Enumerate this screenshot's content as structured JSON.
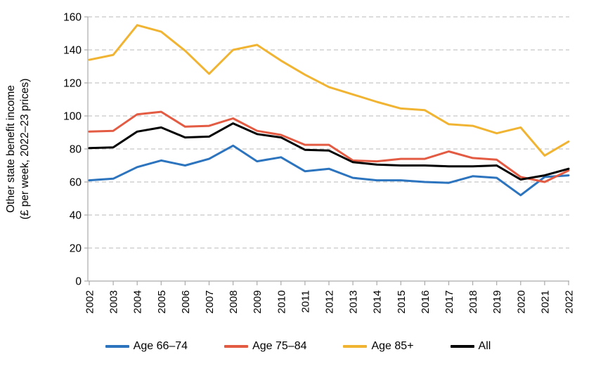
{
  "chart_data": {
    "type": "line",
    "title": "",
    "ylabel_line1": "Other state benefit income",
    "ylabel_line2": "(£ per week, 2022–23 prices)",
    "x": [
      2002,
      2003,
      2004,
      2005,
      2006,
      2007,
      2008,
      2009,
      2010,
      2011,
      2012,
      2013,
      2014,
      2015,
      2016,
      2017,
      2018,
      2019,
      2020,
      2021,
      2022
    ],
    "ylim": [
      0,
      160
    ],
    "ytick_step": 20,
    "grid": "horizontal-dashed",
    "legend_position": "bottom",
    "series": [
      {
        "name": "Age 66–74",
        "color": "#2d74bf",
        "values": [
          61,
          62,
          69,
          73,
          70,
          74,
          82,
          72.5,
          75,
          66.5,
          68,
          62.5,
          61,
          61,
          60,
          59.5,
          63.5,
          62.5,
          52,
          63,
          64
        ]
      },
      {
        "name": "Age 75–84",
        "color": "#e35b43",
        "values": [
          90.5,
          91,
          101,
          102.5,
          93.5,
          94,
          98.5,
          91,
          88.5,
          82.5,
          82.5,
          73,
          72.5,
          74,
          74,
          78.5,
          74.5,
          73.5,
          63,
          60,
          67
        ]
      },
      {
        "name": "Age 85+",
        "color": "#f1b432",
        "values": [
          134,
          137,
          155,
          151,
          139.5,
          125.5,
          140,
          143,
          133.5,
          125,
          117.5,
          113,
          108.5,
          104.5,
          103.5,
          95,
          94,
          89.5,
          93,
          76,
          84.5
        ]
      },
      {
        "name": "All",
        "color": "#000000",
        "values": [
          80.5,
          81,
          90.5,
          93,
          87,
          87.5,
          95.5,
          89,
          87,
          79.5,
          79,
          72,
          70.5,
          70,
          70,
          69.5,
          69.5,
          70,
          61.5,
          64,
          68
        ]
      }
    ],
    "colors": {
      "grid": "#c6c6c6",
      "axis": "#aaaaaa",
      "text": "#000000"
    }
  }
}
